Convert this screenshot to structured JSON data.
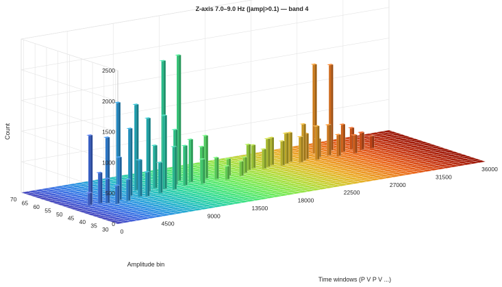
{
  "chart_data": {
    "type": "bar3d",
    "title": "Z-axis  7.0–9.0 Hz   (|amp|>0.1) — band 4",
    "xlabel": "Time windows  (P  V  P  V ...)",
    "ylabel": "Amplitude bin",
    "zlabel": "Count",
    "xlim": [
      0,
      36000
    ],
    "ylim": [
      29,
      71
    ],
    "zlim": [
      0,
      2500
    ],
    "x_ticks": [
      "0",
      "4500",
      "9000",
      "13500",
      "18000",
      "22500",
      "27000",
      "31500",
      "36000"
    ],
    "y_ticks": [
      "30",
      "35",
      "40",
      "45",
      "50",
      "55",
      "60",
      "65",
      "70"
    ],
    "z_ticks": [
      "0",
      "500",
      "1000",
      "1500",
      "2000",
      "2500"
    ],
    "grid": true,
    "colormap": "turbo (colored by time window)",
    "bars": [
      {
        "x": 1900,
        "y": 50,
        "z": 200
      },
      {
        "x": 2400,
        "y": 52,
        "z": 1100
      },
      {
        "x": 2900,
        "y": 50,
        "z": 500
      },
      {
        "x": 3400,
        "y": 49,
        "z": 400
      },
      {
        "x": 3900,
        "y": 47,
        "z": 300
      },
      {
        "x": 4300,
        "y": 53,
        "z": 1000
      },
      {
        "x": 4800,
        "y": 50,
        "z": 700
      },
      {
        "x": 5200,
        "y": 48,
        "z": 350
      },
      {
        "x": 5800,
        "y": 55,
        "z": 1500
      },
      {
        "x": 6300,
        "y": 52,
        "z": 1100
      },
      {
        "x": 6800,
        "y": 50,
        "z": 600
      },
      {
        "x": 7300,
        "y": 49,
        "z": 400
      },
      {
        "x": 7800,
        "y": 56,
        "z": 1400
      },
      {
        "x": 8300,
        "y": 53,
        "z": 1200
      },
      {
        "x": 8800,
        "y": 50,
        "z": 500
      },
      {
        "x": 9400,
        "y": 55,
        "z": 700
      },
      {
        "x": 9900,
        "y": 53,
        "z": 1200
      },
      {
        "x": 10400,
        "y": 51,
        "z": 700
      },
      {
        "x": 10900,
        "y": 58,
        "z": 2000
      },
      {
        "x": 11400,
        "y": 55,
        "z": 900
      },
      {
        "x": 11900,
        "y": 53,
        "z": 650
      },
      {
        "x": 12400,
        "y": 58,
        "z": 2050
      },
      {
        "x": 12900,
        "y": 55,
        "z": 700
      },
      {
        "x": 13400,
        "y": 52,
        "z": 400
      },
      {
        "x": 14000,
        "y": 55,
        "z": 550
      },
      {
        "x": 14600,
        "y": 56,
        "z": 700
      },
      {
        "x": 15200,
        "y": 54,
        "z": 350
      },
      {
        "x": 15800,
        "y": 52,
        "z": 220
      },
      {
        "x": 16600,
        "y": 55,
        "z": 280
      },
      {
        "x": 17400,
        "y": 53,
        "z": 240
      },
      {
        "x": 18200,
        "y": 55,
        "z": 260
      },
      {
        "x": 19000,
        "y": 57,
        "z": 420
      },
      {
        "x": 19700,
        "y": 58,
        "z": 380
      },
      {
        "x": 20300,
        "y": 56,
        "z": 320
      },
      {
        "x": 20900,
        "y": 57,
        "z": 460
      },
      {
        "x": 21500,
        "y": 58,
        "z": 450
      },
      {
        "x": 22100,
        "y": 56,
        "z": 400
      },
      {
        "x": 22700,
        "y": 57,
        "z": 500
      },
      {
        "x": 23300,
        "y": 58,
        "z": 480
      },
      {
        "x": 23900,
        "y": 56,
        "z": 420
      },
      {
        "x": 24400,
        "y": 57,
        "z": 600
      },
      {
        "x": 24900,
        "y": 58,
        "z": 420
      },
      {
        "x": 25500,
        "y": 56,
        "z": 550
      },
      {
        "x": 26100,
        "y": 58,
        "z": 300
      },
      {
        "x": 26600,
        "y": 62,
        "z": 1450
      },
      {
        "x": 27100,
        "y": 58,
        "z": 500
      },
      {
        "x": 27600,
        "y": 56,
        "z": 350
      },
      {
        "x": 28200,
        "y": 62,
        "z": 1400
      },
      {
        "x": 28700,
        "y": 59,
        "z": 450
      },
      {
        "x": 29200,
        "y": 56,
        "z": 300
      },
      {
        "x": 29800,
        "y": 60,
        "z": 350
      },
      {
        "x": 30300,
        "y": 58,
        "z": 280
      },
      {
        "x": 30800,
        "y": 60,
        "z": 250
      },
      {
        "x": 31300,
        "y": 58,
        "z": 200
      }
    ]
  }
}
